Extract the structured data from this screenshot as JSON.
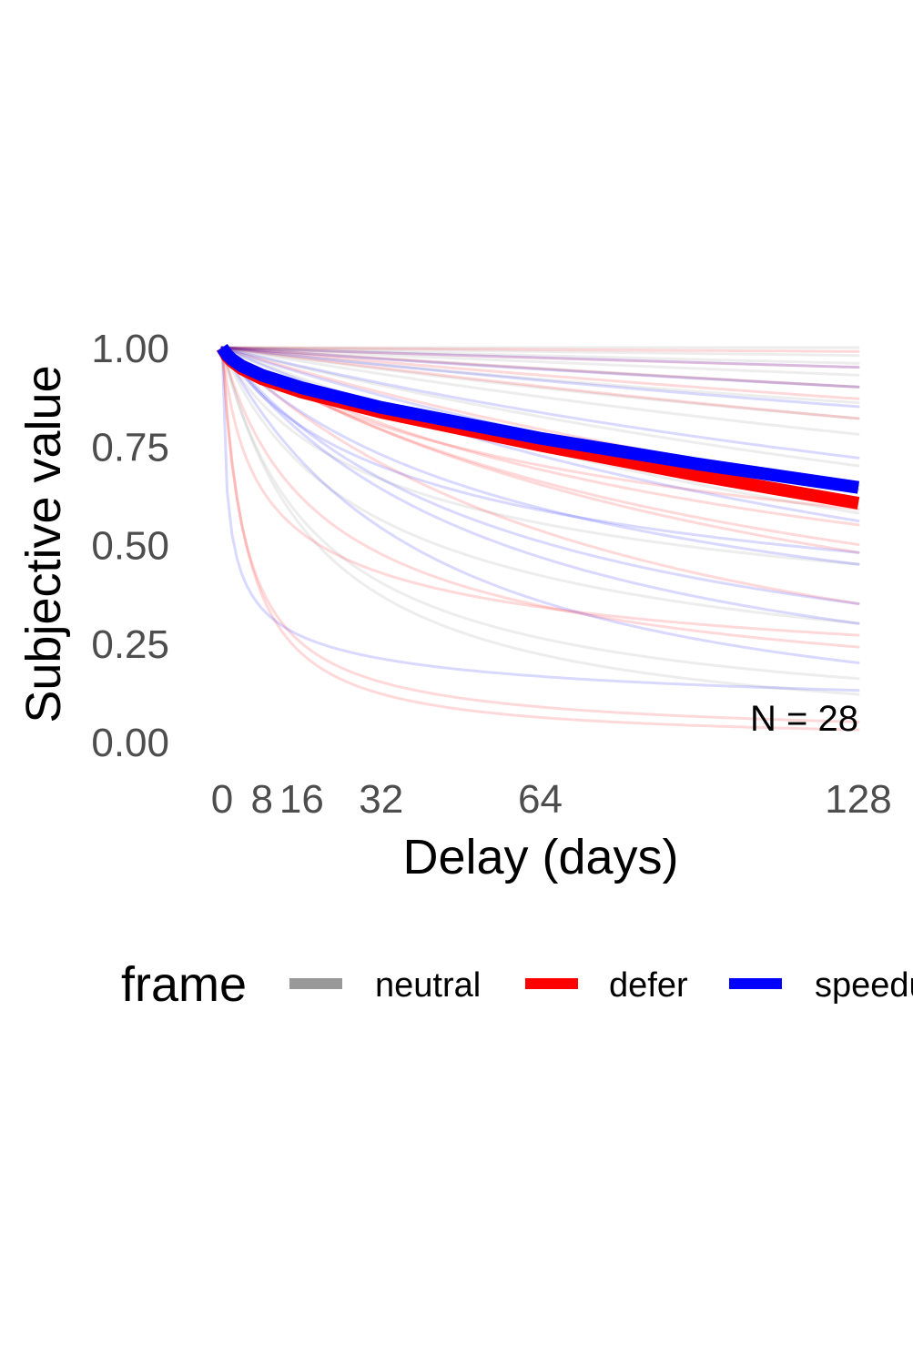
{
  "chart_data": {
    "type": "line",
    "xlabel": "Delay (days)",
    "ylabel": "Subjective value",
    "xlim": [
      0,
      128
    ],
    "ylim": [
      0,
      1
    ],
    "x_ticks": [
      0,
      8,
      16,
      32,
      64,
      128
    ],
    "x_tick_labels": [
      "0",
      "8",
      "16",
      "32",
      "64",
      "128"
    ],
    "y_ticks": [
      0,
      0.25,
      0.5,
      0.75,
      1.0
    ],
    "y_tick_labels": [
      "0.00",
      "0.25",
      "0.50",
      "0.75",
      "1.00"
    ],
    "grid": false,
    "legend": {
      "title": "frame",
      "position": "bottom"
    },
    "annotation": "N = 28",
    "colors": {
      "neutral": "#999999",
      "defer": "#ff0000",
      "speedup": "#0000ff"
    },
    "x": [
      0,
      1,
      2,
      4,
      8,
      16,
      32,
      64,
      96,
      128
    ],
    "series": [
      {
        "name": "neutral",
        "color": "#999999",
        "values": [
          1.0,
          0.982,
          0.97,
          0.953,
          0.93,
          0.898,
          0.848,
          0.77,
          0.704,
          0.645
        ]
      },
      {
        "name": "defer",
        "color": "#ff0000",
        "values": [
          1.0,
          0.978,
          0.965,
          0.946,
          0.921,
          0.887,
          0.836,
          0.752,
          0.675,
          0.605
        ]
      },
      {
        "name": "speedup",
        "color": "#0000ff",
        "values": [
          1.0,
          0.982,
          0.97,
          0.953,
          0.93,
          0.898,
          0.848,
          0.77,
          0.704,
          0.645
        ]
      }
    ],
    "individual_curves": [
      {
        "frame": "neutral",
        "end": 1.0
      },
      {
        "frame": "neutral",
        "end": 0.98
      },
      {
        "frame": "neutral",
        "end": 0.96
      },
      {
        "frame": "neutral",
        "end": 0.93
      },
      {
        "frame": "neutral",
        "end": 0.9
      },
      {
        "frame": "neutral",
        "end": 0.86
      },
      {
        "frame": "neutral",
        "end": 0.82
      },
      {
        "frame": "neutral",
        "end": 0.78
      },
      {
        "frame": "neutral",
        "end": 0.7
      },
      {
        "frame": "neutral",
        "end": 0.58
      },
      {
        "frame": "neutral",
        "end": 0.45
      },
      {
        "frame": "neutral",
        "end": 0.3
      },
      {
        "frame": "neutral",
        "end": 0.16
      },
      {
        "frame": "neutral",
        "end": 0.12
      },
      {
        "frame": "defer",
        "end": 0.99
      },
      {
        "frame": "defer",
        "end": 0.95
      },
      {
        "frame": "defer",
        "end": 0.9
      },
      {
        "frame": "defer",
        "end": 0.87
      },
      {
        "frame": "defer",
        "end": 0.82
      },
      {
        "frame": "defer",
        "end": 0.65
      },
      {
        "frame": "defer",
        "end": 0.59
      },
      {
        "frame": "defer",
        "end": 0.55
      },
      {
        "frame": "defer",
        "end": 0.5
      },
      {
        "frame": "defer",
        "end": 0.48
      },
      {
        "frame": "defer",
        "end": 0.35
      },
      {
        "frame": "defer",
        "end": 0.27
      },
      {
        "frame": "defer",
        "end": 0.24
      },
      {
        "frame": "defer",
        "end": 0.05
      },
      {
        "frame": "defer",
        "end": 0.03
      },
      {
        "frame": "speedup",
        "end": 0.95
      },
      {
        "frame": "speedup",
        "end": 0.9
      },
      {
        "frame": "speedup",
        "end": 0.85
      },
      {
        "frame": "speedup",
        "end": 0.72
      },
      {
        "frame": "speedup",
        "end": 0.64
      },
      {
        "frame": "speedup",
        "end": 0.56
      },
      {
        "frame": "speedup",
        "end": 0.48
      },
      {
        "frame": "speedup",
        "end": 0.45
      },
      {
        "frame": "speedup",
        "end": 0.35
      },
      {
        "frame": "speedup",
        "end": 0.3
      },
      {
        "frame": "speedup",
        "end": 0.2
      },
      {
        "frame": "speedup",
        "end": 0.13
      }
    ]
  }
}
